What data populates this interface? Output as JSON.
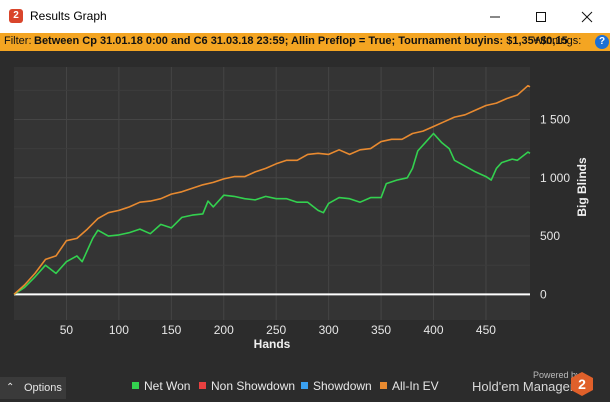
{
  "window": {
    "title": "Results Graph",
    "minimize_icon": "minimize-icon",
    "maximize_icon": "maximize-icon",
    "close_icon": "close-icon"
  },
  "filter": {
    "label": "Filter:",
    "text": "Between Cp 31.01.18 0:00 and C6 31.03.18 23:59; Allin Preflop = True; Tournament buyins: $1,35+$0,15",
    "trailing": "Winnings:"
  },
  "footer": {
    "options_label": "Options",
    "powered_by": "Powered by",
    "brand": "Hold'em Manager",
    "brand_number": "2"
  },
  "colors": {
    "net_won": "#33d14f",
    "non_showdown": "#e84040",
    "showdown": "#3aa0f0",
    "all_in_ev": "#e88a30",
    "filter_bar": "#f4a522",
    "plot_bg": "#343434"
  },
  "chart_data": {
    "type": "line",
    "xlabel": "Hands",
    "ylabel": "Big Blinds",
    "xlim": [
      0,
      492
    ],
    "ylim": [
      -220,
      1950
    ],
    "x_ticks": [
      "50",
      "100",
      "150",
      "200",
      "250",
      "300",
      "350",
      "400",
      "450"
    ],
    "y_ticks": [
      "0",
      "500",
      "1 000",
      "1 500"
    ],
    "grid": true,
    "legend_position": "bottom",
    "zero_line": true,
    "series": [
      {
        "name": "Net Won",
        "color": "#33d14f",
        "points": [
          [
            0,
            0
          ],
          [
            10,
            60
          ],
          [
            20,
            150
          ],
          [
            30,
            250
          ],
          [
            40,
            180
          ],
          [
            50,
            280
          ],
          [
            60,
            330
          ],
          [
            65,
            280
          ],
          [
            75,
            480
          ],
          [
            80,
            550
          ],
          [
            90,
            500
          ],
          [
            100,
            510
          ],
          [
            110,
            530
          ],
          [
            120,
            560
          ],
          [
            130,
            520
          ],
          [
            140,
            600
          ],
          [
            150,
            570
          ],
          [
            160,
            660
          ],
          [
            170,
            680
          ],
          [
            180,
            690
          ],
          [
            185,
            800
          ],
          [
            190,
            750
          ],
          [
            200,
            850
          ],
          [
            210,
            840
          ],
          [
            220,
            820
          ],
          [
            230,
            810
          ],
          [
            240,
            840
          ],
          [
            250,
            820
          ],
          [
            260,
            820
          ],
          [
            270,
            790
          ],
          [
            280,
            790
          ],
          [
            290,
            720
          ],
          [
            295,
            700
          ],
          [
            300,
            780
          ],
          [
            310,
            830
          ],
          [
            320,
            820
          ],
          [
            330,
            790
          ],
          [
            340,
            830
          ],
          [
            350,
            830
          ],
          [
            355,
            950
          ],
          [
            365,
            980
          ],
          [
            375,
            1000
          ],
          [
            380,
            1080
          ],
          [
            385,
            1230
          ],
          [
            392,
            1300
          ],
          [
            400,
            1380
          ],
          [
            408,
            1300
          ],
          [
            415,
            1250
          ],
          [
            420,
            1150
          ],
          [
            430,
            1100
          ],
          [
            440,
            1050
          ],
          [
            450,
            1010
          ],
          [
            455,
            980
          ],
          [
            460,
            1080
          ],
          [
            465,
            1130
          ],
          [
            475,
            1160
          ],
          [
            480,
            1150
          ],
          [
            490,
            1220
          ],
          [
            492,
            1210
          ]
        ]
      },
      {
        "name": "Non Showdown",
        "color": "#e84040",
        "points": []
      },
      {
        "name": "Showdown",
        "color": "#3aa0f0",
        "points": []
      },
      {
        "name": "All-In EV",
        "color": "#e88a30",
        "points": [
          [
            0,
            0
          ],
          [
            10,
            80
          ],
          [
            20,
            180
          ],
          [
            30,
            300
          ],
          [
            40,
            330
          ],
          [
            50,
            460
          ],
          [
            60,
            480
          ],
          [
            70,
            560
          ],
          [
            80,
            650
          ],
          [
            90,
            700
          ],
          [
            100,
            720
          ],
          [
            110,
            750
          ],
          [
            120,
            790
          ],
          [
            130,
            800
          ],
          [
            140,
            820
          ],
          [
            150,
            860
          ],
          [
            160,
            880
          ],
          [
            170,
            910
          ],
          [
            180,
            940
          ],
          [
            190,
            960
          ],
          [
            200,
            990
          ],
          [
            210,
            1010
          ],
          [
            220,
            1010
          ],
          [
            230,
            1050
          ],
          [
            240,
            1080
          ],
          [
            250,
            1120
          ],
          [
            260,
            1150
          ],
          [
            270,
            1150
          ],
          [
            280,
            1200
          ],
          [
            290,
            1210
          ],
          [
            300,
            1200
          ],
          [
            310,
            1240
          ],
          [
            320,
            1200
          ],
          [
            330,
            1240
          ],
          [
            340,
            1250
          ],
          [
            350,
            1310
          ],
          [
            360,
            1330
          ],
          [
            370,
            1330
          ],
          [
            380,
            1380
          ],
          [
            390,
            1400
          ],
          [
            400,
            1440
          ],
          [
            410,
            1480
          ],
          [
            420,
            1520
          ],
          [
            430,
            1540
          ],
          [
            440,
            1580
          ],
          [
            450,
            1620
          ],
          [
            460,
            1640
          ],
          [
            470,
            1680
          ],
          [
            480,
            1710
          ],
          [
            490,
            1790
          ],
          [
            492,
            1780
          ]
        ]
      }
    ]
  }
}
